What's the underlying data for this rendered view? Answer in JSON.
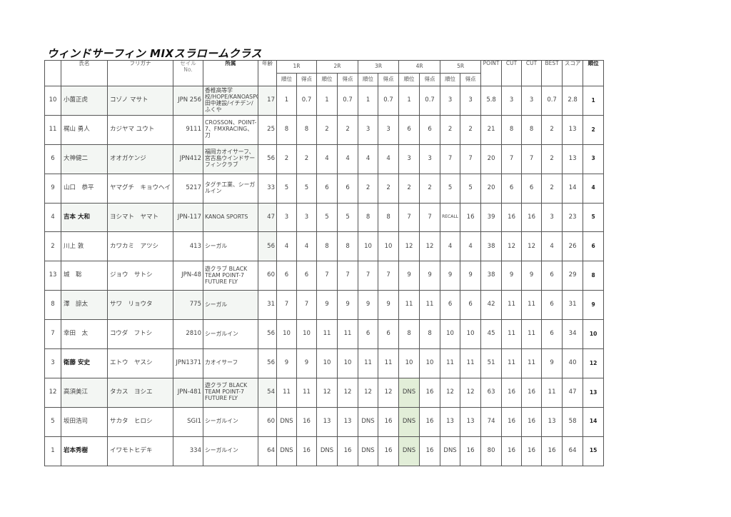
{
  "title": "ウィンドサーフィン  MIXスラロームクラス",
  "headers": {
    "name": "氏名",
    "furigana": "フリガナ",
    "sail": "セイル\nNo.",
    "club": "所属",
    "age": "年齢",
    "rounds": [
      "1R",
      "2R",
      "3R",
      "4R",
      "5R"
    ],
    "sub_rank": "順位",
    "sub_points": "得点",
    "point": "POINT",
    "cut1": "CUT",
    "cut2": "CUT",
    "best": "BEST",
    "score": "スコア",
    "rank": "順位"
  },
  "colors": {
    "highlight_green": "#e2eed8",
    "shade": "#f3f6f3"
  },
  "rows": [
    {
      "no": "10",
      "name": "小薗正虎",
      "furigana": "コゾノ マサト",
      "sail": "JPN 256",
      "club": "香椎高等学校/HOPE/KANOASPORTS/田中建設/イチデン/ふくや",
      "age": "17",
      "r": [
        "1",
        "0.7",
        "1",
        "0.7",
        "1",
        "0.7",
        "1",
        "0.7",
        "3",
        "3"
      ],
      "point": "5.8",
      "cut1": "3",
      "cut2": "3",
      "best": "0.7",
      "score": "2.8",
      "rank": "1"
    },
    {
      "no": "11",
      "name": "梶山 勇人",
      "furigana": "カジヤマ ユウト",
      "sail": "9111",
      "club": "CROSSON、POINT-7、FMXRACING、刀",
      "age": "25",
      "r": [
        "8",
        "8",
        "2",
        "2",
        "3",
        "3",
        "6",
        "6",
        "2",
        "2"
      ],
      "point": "21",
      "cut1": "8",
      "cut2": "8",
      "best": "2",
      "score": "13",
      "rank": "2"
    },
    {
      "no": "6",
      "name": "大神健二",
      "furigana": "オオガケンジ",
      "sail": "JPN412",
      "club": "福岡カオイサーフ、宮古島ウインドサーフィンクラブ",
      "age": "56",
      "r": [
        "2",
        "2",
        "4",
        "4",
        "4",
        "4",
        "3",
        "3",
        "7",
        "7"
      ],
      "point": "20",
      "cut1": "7",
      "cut2": "7",
      "best": "2",
      "score": "13",
      "rank": "3"
    },
    {
      "no": "9",
      "name": "山口　恭平",
      "furigana": "ヤマグチ　キョウヘイ",
      "sail": "5217",
      "club": "タグチ工業、シーガルイン",
      "age": "33",
      "r": [
        "5",
        "5",
        "6",
        "6",
        "2",
        "2",
        "2",
        "2",
        "5",
        "5"
      ],
      "point": "20",
      "cut1": "6",
      "cut2": "6",
      "best": "2",
      "score": "14",
      "rank": "4"
    },
    {
      "no": "4",
      "name": "吉本 大和",
      "furigana": "ヨシマト　ヤマト",
      "sail": "JPN-117",
      "club": "KANOA SPORTS",
      "age": "47",
      "r": [
        "3",
        "3",
        "5",
        "5",
        "8",
        "8",
        "7",
        "7",
        "RECALL",
        "16"
      ],
      "point": "39",
      "cut1": "16",
      "cut2": "16",
      "best": "3",
      "score": "23",
      "rank": "5"
    },
    {
      "no": "2",
      "name": "川上 敦",
      "furigana": "カワカミ　アツシ",
      "sail": "413",
      "club": "シーガル",
      "age": "56",
      "r": [
        "4",
        "4",
        "8",
        "8",
        "10",
        "10",
        "12",
        "12",
        "4",
        "4"
      ],
      "point": "38",
      "cut1": "12",
      "cut2": "12",
      "best": "4",
      "score": "26",
      "rank": "6"
    },
    {
      "no": "13",
      "name": "城　聡",
      "furigana": "ジョウ　サトシ",
      "sail": "JPN-48",
      "club": "遊クラブ BLACK TEAM POINT-7 FUTURE FLY",
      "age": "60",
      "r": [
        "6",
        "6",
        "7",
        "7",
        "7",
        "7",
        "9",
        "9",
        "9",
        "9"
      ],
      "point": "38",
      "cut1": "9",
      "cut2": "9",
      "best": "6",
      "score": "29",
      "rank": "8"
    },
    {
      "no": "8",
      "name": "澤　諒太",
      "furigana": "サワ　リョウタ",
      "sail": "775",
      "club": "シーガル",
      "age": "31",
      "r": [
        "7",
        "7",
        "9",
        "9",
        "9",
        "9",
        "11",
        "11",
        "6",
        "6"
      ],
      "point": "42",
      "cut1": "11",
      "cut2": "11",
      "best": "6",
      "score": "31",
      "rank": "9"
    },
    {
      "no": "7",
      "name": "幸田　太",
      "furigana": "コウダ　フトシ",
      "sail": "2810",
      "club": "シーガルイン",
      "age": "56",
      "r": [
        "10",
        "10",
        "11",
        "11",
        "6",
        "6",
        "8",
        "8",
        "10",
        "10"
      ],
      "point": "45",
      "cut1": "11",
      "cut2": "11",
      "best": "6",
      "score": "34",
      "rank": "10"
    },
    {
      "no": "3",
      "name": "衛藤 安史",
      "furigana": "エトウ　ヤスシ",
      "sail": "JPN1371",
      "club": "カオイサーフ",
      "age": "56",
      "r": [
        "9",
        "9",
        "10",
        "10",
        "11",
        "11",
        "10",
        "10",
        "11",
        "11"
      ],
      "point": "51",
      "cut1": "11",
      "cut2": "11",
      "best": "9",
      "score": "40",
      "rank": "12"
    },
    {
      "no": "12",
      "name": "高須美江",
      "furigana": "タカス　ヨシエ",
      "sail": "JPN-481",
      "club": "遊クラブ BLACK TEAM POINT-7 FUTURE FLY",
      "age": "54",
      "r": [
        "11",
        "11",
        "12",
        "12",
        "12",
        "12",
        "DNS",
        "16",
        "12",
        "12"
      ],
      "point": "63",
      "cut1": "16",
      "cut2": "16",
      "best": "11",
      "score": "47",
      "rank": "13"
    },
    {
      "no": "5",
      "name": "坂田浩司",
      "furigana": "サカタ　ヒロシ",
      "sail": "SGI1",
      "club": "シーガルイン",
      "age": "60",
      "r": [
        "DNS",
        "16",
        "13",
        "13",
        "DNS",
        "16",
        "DNS",
        "16",
        "13",
        "13"
      ],
      "point": "74",
      "cut1": "16",
      "cut2": "16",
      "best": "13",
      "score": "58",
      "rank": "14"
    },
    {
      "no": "1",
      "name": "岩本秀樹",
      "furigana": "イワモトヒデキ",
      "sail": "334",
      "club": "シーガルイン",
      "age": "64",
      "r": [
        "DNS",
        "16",
        "DNS",
        "16",
        "DNS",
        "16",
        "DNS",
        "16",
        "DNS",
        "16"
      ],
      "point": "80",
      "cut1": "16",
      "cut2": "16",
      "best": "16",
      "score": "64",
      "rank": "15"
    }
  ]
}
